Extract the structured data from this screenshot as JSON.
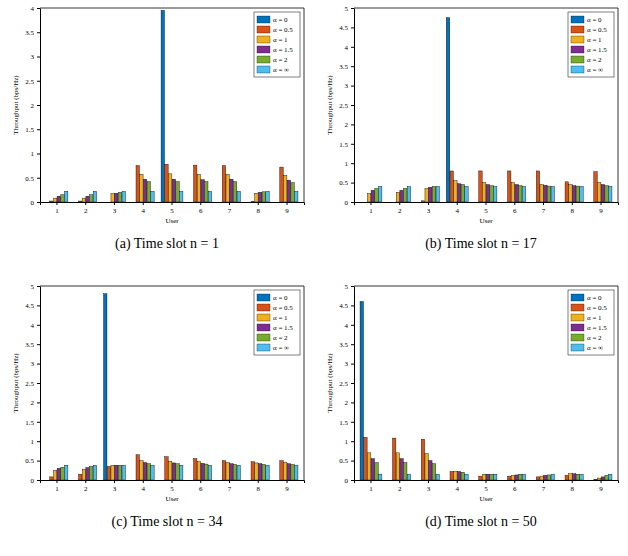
{
  "chart_data": [
    {
      "type": "bar",
      "title": "(a) Time slot n = 1",
      "xlabel": "User",
      "ylabel": "Throughput (bps/Hz)",
      "categories": [
        "1",
        "2",
        "3",
        "4",
        "5",
        "6",
        "7",
        "8",
        "9"
      ],
      "ylim": [
        0,
        4
      ],
      "yticks": [
        0,
        0.5,
        1,
        1.5,
        2,
        2.5,
        3,
        3.5,
        4
      ],
      "legend": "northeast",
      "series": [
        {
          "name": "α = 0",
          "color": "#0072BD",
          "values": [
            0,
            0,
            0,
            0,
            3.95,
            0,
            0,
            0,
            0
          ]
        },
        {
          "name": "α = 0.5",
          "color": "#D95319",
          "values": [
            0.02,
            0.02,
            0,
            0.75,
            0.78,
            0.76,
            0.75,
            0.01,
            0.72
          ]
        },
        {
          "name": "α = 1",
          "color": "#EDB120",
          "values": [
            0.08,
            0.08,
            0.17,
            0.57,
            0.58,
            0.57,
            0.57,
            0.18,
            0.55
          ]
        },
        {
          "name": "α = 1.5",
          "color": "#7E2F8E",
          "values": [
            0.12,
            0.12,
            0.18,
            0.47,
            0.47,
            0.46,
            0.47,
            0.2,
            0.45
          ]
        },
        {
          "name": "α = 2",
          "color": "#77AC30",
          "values": [
            0.15,
            0.15,
            0.2,
            0.42,
            0.42,
            0.42,
            0.42,
            0.21,
            0.4
          ]
        },
        {
          "name": "α = ∞",
          "color": "#4DBEEE",
          "values": [
            0.22,
            0.22,
            0.22,
            0.22,
            0.22,
            0.22,
            0.22,
            0.22,
            0.22
          ]
        }
      ]
    },
    {
      "type": "bar",
      "title": "(b) Time slot n = 17",
      "xlabel": "User",
      "ylabel": "Throughput (bps/Hz)",
      "categories": [
        "1",
        "2",
        "3",
        "4",
        "5",
        "6",
        "7",
        "8",
        "9"
      ],
      "ylim": [
        0,
        5
      ],
      "yticks": [
        0,
        0.5,
        1,
        1.5,
        2,
        2.5,
        3,
        3.5,
        4,
        4.5,
        5
      ],
      "legend": "northeast",
      "series": [
        {
          "name": "α = 0",
          "color": "#0072BD",
          "values": [
            0,
            0,
            0,
            4.75,
            0,
            0,
            0,
            0,
            0
          ]
        },
        {
          "name": "α = 0.5",
          "color": "#D95319",
          "values": [
            0,
            0,
            0.03,
            0.8,
            0.8,
            0.8,
            0.8,
            0.52,
            0.78
          ]
        },
        {
          "name": "α = 1",
          "color": "#EDB120",
          "values": [
            0.22,
            0.25,
            0.35,
            0.55,
            0.5,
            0.5,
            0.45,
            0.45,
            0.5
          ]
        },
        {
          "name": "α = 1.5",
          "color": "#7E2F8E",
          "values": [
            0.3,
            0.3,
            0.38,
            0.47,
            0.45,
            0.45,
            0.43,
            0.42,
            0.45
          ]
        },
        {
          "name": "α = 2",
          "color": "#77AC30",
          "values": [
            0.35,
            0.35,
            0.4,
            0.45,
            0.42,
            0.42,
            0.41,
            0.41,
            0.42
          ]
        },
        {
          "name": "α = ∞",
          "color": "#4DBEEE",
          "values": [
            0.4,
            0.4,
            0.4,
            0.4,
            0.4,
            0.4,
            0.4,
            0.4,
            0.4
          ]
        }
      ]
    },
    {
      "type": "bar",
      "title": "(c) Time slot n = 34",
      "xlabel": "User",
      "ylabel": "Throughput (bps/Hz)",
      "categories": [
        "1",
        "2",
        "3",
        "4",
        "5",
        "6",
        "7",
        "8",
        "9"
      ],
      "ylim": [
        0,
        5
      ],
      "yticks": [
        0,
        0.5,
        1,
        1.5,
        2,
        2.5,
        3,
        3.5,
        4,
        4.5,
        5
      ],
      "legend": "northeast",
      "series": [
        {
          "name": "α = 0",
          "color": "#0072BD",
          "values": [
            0,
            0,
            4.8,
            0,
            0,
            0,
            0,
            0,
            0
          ]
        },
        {
          "name": "α = 0.5",
          "color": "#D95319",
          "values": [
            0.08,
            0.15,
            0.35,
            0.65,
            0.6,
            0.55,
            0.5,
            0.47,
            0.5
          ]
        },
        {
          "name": "α = 1",
          "color": "#EDB120",
          "values": [
            0.25,
            0.28,
            0.38,
            0.5,
            0.48,
            0.47,
            0.45,
            0.44,
            0.45
          ]
        },
        {
          "name": "α = 1.5",
          "color": "#7E2F8E",
          "values": [
            0.3,
            0.32,
            0.38,
            0.45,
            0.44,
            0.43,
            0.42,
            0.42,
            0.42
          ]
        },
        {
          "name": "α = 2",
          "color": "#77AC30",
          "values": [
            0.33,
            0.35,
            0.38,
            0.42,
            0.42,
            0.41,
            0.4,
            0.4,
            0.4
          ]
        },
        {
          "name": "α = ∞",
          "color": "#4DBEEE",
          "values": [
            0.38,
            0.38,
            0.38,
            0.38,
            0.38,
            0.38,
            0.38,
            0.38,
            0.38
          ]
        }
      ]
    },
    {
      "type": "bar",
      "title": "(d) Time slot n = 50",
      "xlabel": "User",
      "ylabel": "Throughput (bps/Hz)",
      "categories": [
        "1",
        "2",
        "3",
        "4",
        "5",
        "6",
        "7",
        "8",
        "9"
      ],
      "ylim": [
        0,
        5
      ],
      "yticks": [
        0,
        0.5,
        1,
        1.5,
        2,
        2.5,
        3,
        3.5,
        4,
        4.5,
        5
      ],
      "legend": "northeast",
      "series": [
        {
          "name": "α = 0",
          "color": "#0072BD",
          "values": [
            4.6,
            0,
            0,
            0,
            0,
            0,
            0,
            0,
            0
          ]
        },
        {
          "name": "α = 0.5",
          "color": "#D95319",
          "values": [
            1.1,
            1.08,
            1.05,
            0.22,
            0.1,
            0.1,
            0.08,
            0.12,
            0.02
          ]
        },
        {
          "name": "α = 1",
          "color": "#EDB120",
          "values": [
            0.7,
            0.7,
            0.68,
            0.22,
            0.15,
            0.12,
            0.1,
            0.16,
            0.05
          ]
        },
        {
          "name": "α = 1.5",
          "color": "#7E2F8E",
          "values": [
            0.55,
            0.55,
            0.5,
            0.22,
            0.15,
            0.13,
            0.12,
            0.16,
            0.08
          ]
        },
        {
          "name": "α = 2",
          "color": "#77AC30",
          "values": [
            0.45,
            0.45,
            0.42,
            0.2,
            0.15,
            0.15,
            0.13,
            0.15,
            0.12
          ]
        },
        {
          "name": "α = ∞",
          "color": "#4DBEEE",
          "values": [
            0.15,
            0.15,
            0.15,
            0.15,
            0.15,
            0.15,
            0.15,
            0.15,
            0.15
          ]
        }
      ]
    }
  ]
}
